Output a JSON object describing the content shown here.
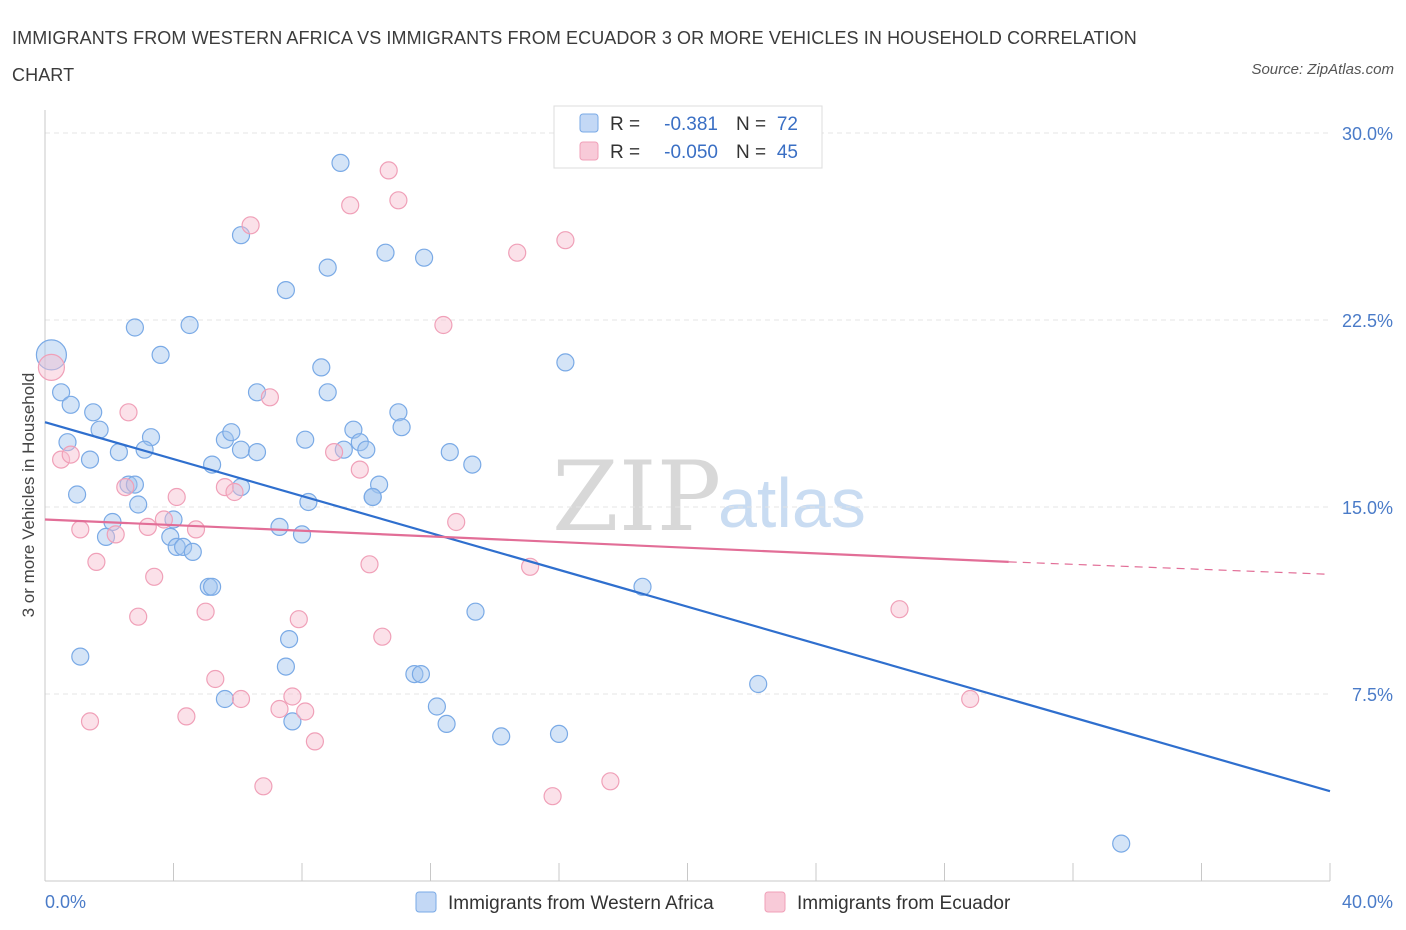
{
  "title": "IMMIGRANTS FROM WESTERN AFRICA VS IMMIGRANTS FROM ECUADOR 3 OR MORE VEHICLES IN HOUSEHOLD CORRELATION CHART",
  "source": "Source: ZipAtlas.com",
  "watermark": {
    "zip": "ZIP",
    "atlas": "atlas"
  },
  "colors": {
    "blue": "#7aaae6",
    "blue_line": "#2f6fce",
    "pink": "#f0a0b8",
    "pink_line": "#e26e97",
    "tick": "#4a7bc8"
  },
  "legend": {
    "rows": [
      {
        "r_label": "R =",
        "r_value": "-0.381",
        "n_label": "N =",
        "n_value": "72"
      },
      {
        "r_label": "R =",
        "r_value": "-0.050",
        "n_label": "N =",
        "n_value": "45"
      }
    ]
  },
  "chart_data": {
    "type": "scatter",
    "title": "IMMIGRANTS FROM WESTERN AFRICA VS IMMIGRANTS FROM ECUADOR 3 OR MORE VEHICLES IN HOUSEHOLD CORRELATION CHART",
    "xlabel": "",
    "ylabel": "3 or more Vehicles in Household",
    "xlim": [
      0,
      40
    ],
    "ylim": [
      0,
      30
    ],
    "x_tick_labels": [
      "0.0%",
      "40.0%"
    ],
    "y_ticks": [
      7.5,
      15.0,
      22.5,
      30.0
    ],
    "y_tick_labels": [
      "7.5%",
      "15.0%",
      "22.5%",
      "30.0%"
    ],
    "grid": true,
    "legend_position": "top-center",
    "series": [
      {
        "name": "Immigrants from Western Africa",
        "color": "#7aaae6",
        "trend": {
          "x": [
            0,
            40
          ],
          "y": [
            18.4,
            3.6
          ]
        },
        "points": [
          [
            0.2,
            21.1
          ],
          [
            0.5,
            19.6
          ],
          [
            0.8,
            19.1
          ],
          [
            0.7,
            17.6
          ],
          [
            1.5,
            18.8
          ],
          [
            1.7,
            18.1
          ],
          [
            1.4,
            16.9
          ],
          [
            2.3,
            17.2
          ],
          [
            2.6,
            15.9
          ],
          [
            1.0,
            15.5
          ],
          [
            2.1,
            14.4
          ],
          [
            2.9,
            15.1
          ],
          [
            1.9,
            13.8
          ],
          [
            3.3,
            17.8
          ],
          [
            3.1,
            17.3
          ],
          [
            2.8,
            15.9
          ],
          [
            3.6,
            21.1
          ],
          [
            2.8,
            22.2
          ],
          [
            4.5,
            22.3
          ],
          [
            4.0,
            14.5
          ],
          [
            3.9,
            13.8
          ],
          [
            4.1,
            13.4
          ],
          [
            4.3,
            13.4
          ],
          [
            4.6,
            13.2
          ],
          [
            5.2,
            16.7
          ],
          [
            5.1,
            11.8
          ],
          [
            5.2,
            11.8
          ],
          [
            5.6,
            17.7
          ],
          [
            5.8,
            18.0
          ],
          [
            6.1,
            15.8
          ],
          [
            6.6,
            19.6
          ],
          [
            6.1,
            17.3
          ],
          [
            6.6,
            17.2
          ],
          [
            7.3,
            14.2
          ],
          [
            7.6,
            9.7
          ],
          [
            7.5,
            8.6
          ],
          [
            7.7,
            6.4
          ],
          [
            5.6,
            7.3
          ],
          [
            1.1,
            9.0
          ],
          [
            6.1,
            25.9
          ],
          [
            7.5,
            23.7
          ],
          [
            8.1,
            17.7
          ],
          [
            8.0,
            13.9
          ],
          [
            8.2,
            15.2
          ],
          [
            8.6,
            20.6
          ],
          [
            8.8,
            24.6
          ],
          [
            8.8,
            19.6
          ],
          [
            9.2,
            28.8
          ],
          [
            9.3,
            17.3
          ],
          [
            9.6,
            18.1
          ],
          [
            9.8,
            17.6
          ],
          [
            10.0,
            17.3
          ],
          [
            10.4,
            15.9
          ],
          [
            10.2,
            15.4
          ],
          [
            10.6,
            25.2
          ],
          [
            10.2,
            15.4
          ],
          [
            11.0,
            18.8
          ],
          [
            11.1,
            18.2
          ],
          [
            11.5,
            8.3
          ],
          [
            11.7,
            8.3
          ],
          [
            11.8,
            25.0
          ],
          [
            12.2,
            7.0
          ],
          [
            12.5,
            6.3
          ],
          [
            12.6,
            17.2
          ],
          [
            13.3,
            16.7
          ],
          [
            13.4,
            10.8
          ],
          [
            14.2,
            5.8
          ],
          [
            16.0,
            5.9
          ],
          [
            16.2,
            20.8
          ],
          [
            18.6,
            11.8
          ],
          [
            22.2,
            7.9
          ],
          [
            33.5,
            1.5
          ]
        ]
      },
      {
        "name": "Immigrants from Ecuador",
        "color": "#f0a0b8",
        "trend": {
          "x": [
            0,
            30
          ],
          "y": [
            14.5,
            12.8
          ]
        },
        "trend_dashed": {
          "x": [
            30,
            40
          ],
          "y": [
            12.8,
            12.3
          ]
        },
        "points": [
          [
            0.2,
            20.6
          ],
          [
            0.5,
            16.9
          ],
          [
            0.8,
            17.1
          ],
          [
            1.1,
            14.1
          ],
          [
            1.4,
            6.4
          ],
          [
            1.6,
            12.8
          ],
          [
            2.2,
            13.9
          ],
          [
            2.5,
            15.8
          ],
          [
            2.6,
            18.8
          ],
          [
            2.9,
            10.6
          ],
          [
            3.2,
            14.2
          ],
          [
            3.4,
            12.2
          ],
          [
            3.7,
            14.5
          ],
          [
            4.1,
            15.4
          ],
          [
            4.4,
            6.6
          ],
          [
            4.7,
            14.1
          ],
          [
            5.0,
            10.8
          ],
          [
            5.3,
            8.1
          ],
          [
            5.6,
            15.8
          ],
          [
            5.9,
            15.6
          ],
          [
            6.1,
            7.3
          ],
          [
            6.4,
            26.3
          ],
          [
            6.8,
            3.8
          ],
          [
            7.0,
            19.4
          ],
          [
            7.3,
            6.9
          ],
          [
            7.7,
            7.4
          ],
          [
            7.9,
            10.5
          ],
          [
            8.1,
            6.8
          ],
          [
            8.4,
            5.6
          ],
          [
            9.0,
            17.2
          ],
          [
            9.5,
            27.1
          ],
          [
            9.8,
            16.5
          ],
          [
            10.1,
            12.7
          ],
          [
            10.5,
            9.8
          ],
          [
            10.7,
            28.5
          ],
          [
            11.0,
            27.3
          ],
          [
            12.4,
            22.3
          ],
          [
            12.8,
            14.4
          ],
          [
            14.7,
            25.2
          ],
          [
            15.1,
            12.6
          ],
          [
            15.8,
            3.4
          ],
          [
            16.2,
            25.7
          ],
          [
            17.6,
            4.0
          ],
          [
            26.6,
            10.9
          ],
          [
            28.8,
            7.3
          ]
        ]
      }
    ]
  }
}
